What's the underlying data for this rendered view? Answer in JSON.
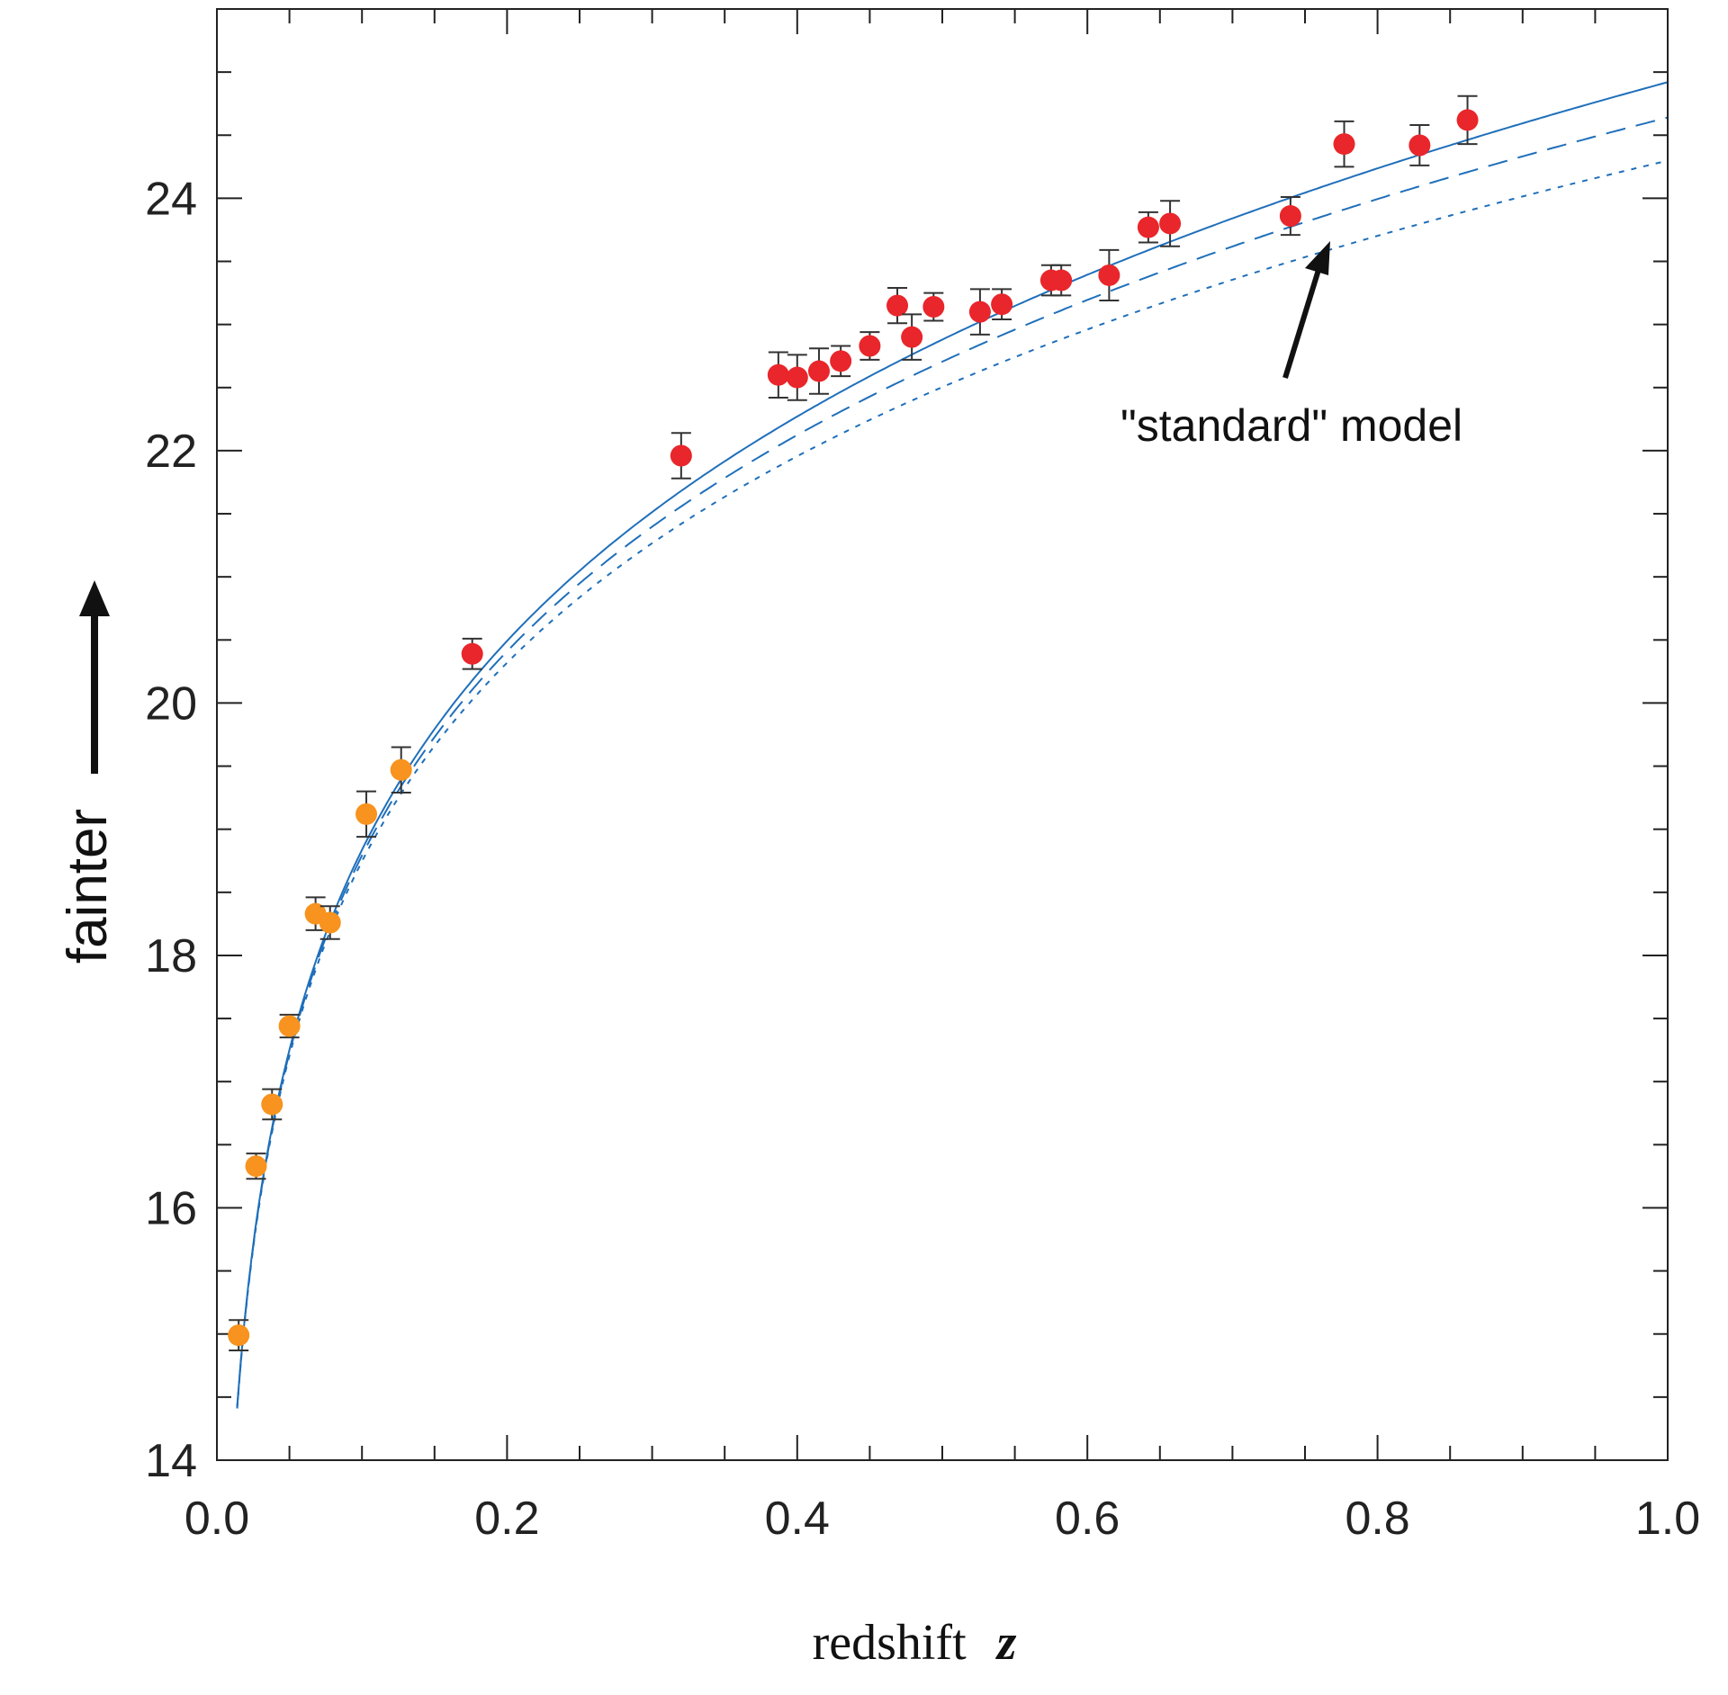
{
  "chart_data": {
    "type": "scatter",
    "title": "",
    "xlabel": "redshift",
    "xlabel_symbol": "z",
    "ylabel": "fainter",
    "xlim": [
      0.0,
      1.0
    ],
    "ylim": [
      14,
      25.5
    ],
    "grid": false,
    "legend": "none",
    "x_tick_labels": [
      "0.0",
      "0.2",
      "0.4",
      "0.6",
      "0.8",
      "1.0"
    ],
    "y_tick_labels": [
      "14",
      "16",
      "18",
      "20",
      "22",
      "24"
    ],
    "annotation": "\"standard\" model",
    "series": [
      {
        "color": "#f7931e",
        "points": [
          {
            "x": 0.015,
            "y": 14.99,
            "err": 0.12
          },
          {
            "x": 0.027,
            "y": 16.33,
            "err": 0.1
          },
          {
            "x": 0.038,
            "y": 16.82,
            "err": 0.12
          },
          {
            "x": 0.05,
            "y": 17.44,
            "err": 0.09
          },
          {
            "x": 0.068,
            "y": 18.33,
            "err": 0.13
          },
          {
            "x": 0.078,
            "y": 18.26,
            "err": 0.13
          },
          {
            "x": 0.103,
            "y": 19.12,
            "err": 0.18
          },
          {
            "x": 0.127,
            "y": 19.47,
            "err": 0.18
          }
        ]
      },
      {
        "color": "#e8262b",
        "points": [
          {
            "x": 0.176,
            "y": 20.39,
            "err": 0.12
          },
          {
            "x": 0.32,
            "y": 21.96,
            "err": 0.18
          },
          {
            "x": 0.387,
            "y": 22.6,
            "err": 0.18
          },
          {
            "x": 0.4,
            "y": 22.58,
            "err": 0.18
          },
          {
            "x": 0.415,
            "y": 22.63,
            "err": 0.18
          },
          {
            "x": 0.43,
            "y": 22.71,
            "err": 0.12
          },
          {
            "x": 0.45,
            "y": 22.83,
            "err": 0.11
          },
          {
            "x": 0.469,
            "y": 23.15,
            "err": 0.14
          },
          {
            "x": 0.479,
            "y": 22.9,
            "err": 0.18
          },
          {
            "x": 0.494,
            "y": 23.14,
            "err": 0.11
          },
          {
            "x": 0.526,
            "y": 23.1,
            "err": 0.18
          },
          {
            "x": 0.541,
            "y": 23.16,
            "err": 0.12
          },
          {
            "x": 0.575,
            "y": 23.35,
            "err": 0.12
          },
          {
            "x": 0.582,
            "y": 23.35,
            "err": 0.12
          },
          {
            "x": 0.615,
            "y": 23.39,
            "err": 0.2
          },
          {
            "x": 0.642,
            "y": 23.77,
            "err": 0.12
          },
          {
            "x": 0.657,
            "y": 23.8,
            "err": 0.18
          },
          {
            "x": 0.74,
            "y": 23.86,
            "err": 0.15
          },
          {
            "x": 0.777,
            "y": 24.43,
            "err": 0.18
          },
          {
            "x": 0.829,
            "y": 24.42,
            "err": 0.16
          },
          {
            "x": 0.862,
            "y": 24.62,
            "err": 0.19
          }
        ]
      }
    ],
    "model_curves": [
      {
        "style": "solid",
        "color": "#1f6fba",
        "offset": 0.0,
        "curvature": 0.0
      },
      {
        "style": "dashed",
        "color": "#1f6fba",
        "offset": 0.0,
        "curvature": 0.33
      },
      {
        "style": "dotted",
        "color": "#1f6fba",
        "offset": 0.0,
        "curvature": 0.68
      }
    ]
  }
}
